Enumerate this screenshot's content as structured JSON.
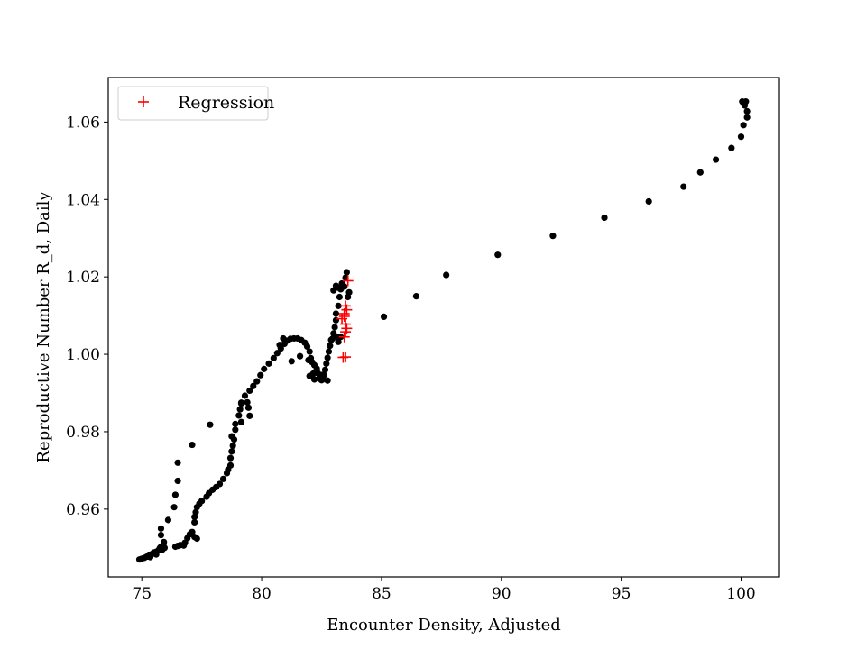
{
  "chart_data": {
    "type": "scatter",
    "title": "",
    "xlabel": "Encounter Density, Adjusted",
    "ylabel": "Reproductive Number R_d, Daily",
    "xlim": [
      73.6,
      101.6
    ],
    "ylim": [
      0.9425,
      1.0715
    ],
    "xticks": [
      75,
      80,
      85,
      90,
      95,
      100
    ],
    "yticks": [
      0.96,
      0.98,
      1.0,
      1.02,
      1.04,
      1.06
    ],
    "xtick_labels": [
      "75",
      "80",
      "85",
      "90",
      "95",
      "100"
    ],
    "ytick_labels": [
      "0.96",
      "0.98",
      "1.00",
      "1.02",
      "1.04",
      "1.06"
    ],
    "legend": {
      "location": "upper-left",
      "entries": [
        "Regression"
      ]
    },
    "series": [
      {
        "marker": "dot",
        "color": "#000000",
        "points": [
          [
            74.9,
            0.947
          ],
          [
            75.0,
            0.9472
          ],
          [
            75.1,
            0.9474
          ],
          [
            75.2,
            0.9477
          ],
          [
            75.3,
            0.948
          ],
          [
            75.35,
            0.9476
          ],
          [
            75.45,
            0.9485
          ],
          [
            75.5,
            0.9488
          ],
          [
            75.6,
            0.949
          ],
          [
            75.7,
            0.9494
          ],
          [
            75.75,
            0.9499
          ],
          [
            75.8,
            0.9503
          ],
          [
            75.85,
            0.9495
          ],
          [
            75.9,
            0.9508
          ],
          [
            75.92,
            0.9515
          ],
          [
            75.95,
            0.95
          ],
          [
            75.8,
            0.9533
          ],
          [
            75.8,
            0.955
          ],
          [
            76.1,
            0.9572
          ],
          [
            76.35,
            0.9605
          ],
          [
            76.4,
            0.9637
          ],
          [
            76.5,
            0.9673
          ],
          [
            76.5,
            0.972
          ],
          [
            76.5,
            0.9505
          ],
          [
            76.6,
            0.9507
          ],
          [
            76.8,
            0.9513
          ],
          [
            76.9,
            0.9525
          ],
          [
            77.0,
            0.9535
          ],
          [
            77.1,
            0.9541
          ],
          [
            77.2,
            0.9528
          ],
          [
            77.3,
            0.9524
          ],
          [
            77.2,
            0.9566
          ],
          [
            77.2,
            0.958
          ],
          [
            77.25,
            0.9592
          ],
          [
            77.3,
            0.9605
          ],
          [
            77.4,
            0.9614
          ],
          [
            77.5,
            0.9621
          ],
          [
            77.7,
            0.9632
          ],
          [
            77.8,
            0.9641
          ],
          [
            77.95,
            0.965
          ],
          [
            78.1,
            0.9657
          ],
          [
            78.25,
            0.9665
          ],
          [
            78.4,
            0.9678
          ],
          [
            78.55,
            0.9693
          ],
          [
            78.6,
            0.9702
          ],
          [
            78.7,
            0.9713
          ],
          [
            78.7,
            0.9732
          ],
          [
            78.75,
            0.9749
          ],
          [
            78.8,
            0.9764
          ],
          [
            78.85,
            0.978
          ],
          [
            78.75,
            0.9788
          ],
          [
            78.9,
            0.9805
          ],
          [
            78.9,
            0.982
          ],
          [
            79.05,
            0.9842
          ],
          [
            79.1,
            0.9858
          ],
          [
            79.15,
            0.9875
          ],
          [
            79.3,
            0.9893
          ],
          [
            79.5,
            0.9906
          ],
          [
            79.65,
            0.9918
          ],
          [
            79.8,
            0.993
          ],
          [
            79.95,
            0.9946
          ],
          [
            80.1,
            0.9962
          ],
          [
            80.3,
            0.9976
          ],
          [
            80.5,
            0.999
          ],
          [
            80.65,
            1.0003
          ],
          [
            80.8,
            1.0015
          ],
          [
            80.95,
            1.0027
          ],
          [
            81.05,
            1.0035
          ],
          [
            81.2,
            1.004
          ],
          [
            81.35,
            1.0041
          ],
          [
            81.5,
            1.0041
          ],
          [
            81.65,
            1.0037
          ],
          [
            81.8,
            1.003
          ],
          [
            81.9,
            1.002
          ],
          [
            82.0,
            1.0007
          ],
          [
            82.05,
            0.999
          ],
          [
            82.1,
            0.998
          ],
          [
            82.2,
            0.9972
          ],
          [
            82.3,
            0.9963
          ],
          [
            82.35,
            0.9951
          ],
          [
            82.45,
            0.9942
          ],
          [
            82.5,
            0.9933
          ],
          [
            82.55,
            0.9935
          ],
          [
            82.6,
            0.9946
          ],
          [
            82.65,
            0.996
          ],
          [
            82.7,
            0.9976
          ],
          [
            82.75,
            0.9991
          ],
          [
            82.8,
            1.0007
          ],
          [
            82.85,
            1.0022
          ],
          [
            82.9,
            1.0037
          ],
          [
            83.0,
            1.0054
          ],
          [
            83.05,
            1.007
          ],
          [
            83.1,
            1.0088
          ],
          [
            83.1,
            1.0105
          ],
          [
            83.2,
            1.0125
          ],
          [
            83.25,
            1.0148
          ],
          [
            83.3,
            1.0168
          ],
          [
            83.35,
            1.0183
          ],
          [
            83.5,
            1.0198
          ],
          [
            83.55,
            1.0212
          ],
          [
            83.45,
            1.0175
          ],
          [
            83.2,
            1.0172
          ],
          [
            83.0,
            1.0165
          ],
          [
            83.1,
            1.0177
          ],
          [
            83.65,
            1.016
          ],
          [
            83.6,
            1.0148
          ],
          [
            83.3,
            1.0045
          ],
          [
            83.2,
            1.0032
          ],
          [
            83.15,
            1.0045
          ],
          [
            82.95,
            1.004
          ],
          [
            81.95,
            0.9985
          ],
          [
            81.6,
            0.9995
          ],
          [
            81.25,
            0.9982
          ],
          [
            82.55,
            0.9947
          ],
          [
            82.4,
            0.9938
          ],
          [
            82.2,
            0.9935
          ],
          [
            82.15,
            0.995
          ],
          [
            82.0,
            0.9944
          ],
          [
            82.75,
            0.9932
          ],
          [
            80.75,
            1.0024
          ],
          [
            80.9,
            1.0041
          ],
          [
            79.15,
            0.9873
          ],
          [
            79.15,
            0.9825
          ],
          [
            79.4,
            0.9876
          ],
          [
            79.45,
            0.9862
          ],
          [
            79.5,
            0.9841
          ],
          [
            77.85,
            0.9818
          ],
          [
            77.1,
            0.9766
          ],
          [
            76.75,
            0.9506
          ],
          [
            76.4,
            0.9503
          ],
          [
            75.6,
            0.9483
          ],
          [
            75.3,
            0.9482
          ],
          [
            85.1,
            1.0097
          ],
          [
            86.45,
            1.015
          ],
          [
            87.7,
            1.0205
          ],
          [
            89.85,
            1.0257
          ],
          [
            92.15,
            1.0306
          ],
          [
            94.3,
            1.0353
          ],
          [
            96.15,
            1.0395
          ],
          [
            97.6,
            1.0433
          ],
          [
            98.3,
            1.047
          ],
          [
            98.95,
            1.0503
          ],
          [
            99.6,
            1.0533
          ],
          [
            100.0,
            1.0562
          ],
          [
            100.1,
            1.0592
          ],
          [
            100.25,
            1.0612
          ],
          [
            100.25,
            1.0628
          ],
          [
            100.15,
            1.0643
          ],
          [
            100.05,
            1.0653
          ],
          [
            100.2,
            1.0653
          ],
          [
            100.1,
            1.0648
          ]
        ]
      },
      {
        "name": "Regression",
        "marker": "plus",
        "color": "#ff0000",
        "points": [
          [
            83.4,
            0.9992
          ],
          [
            83.5,
            0.9993
          ],
          [
            83.45,
            1.0045
          ],
          [
            83.5,
            1.0058
          ],
          [
            83.55,
            1.0067
          ],
          [
            83.5,
            1.0078
          ],
          [
            83.35,
            1.0092
          ],
          [
            83.45,
            1.0105
          ],
          [
            83.55,
            1.0115
          ],
          [
            83.5,
            1.0125
          ],
          [
            83.6,
            1.019
          ],
          [
            83.45,
            1.0098
          ]
        ]
      }
    ]
  }
}
